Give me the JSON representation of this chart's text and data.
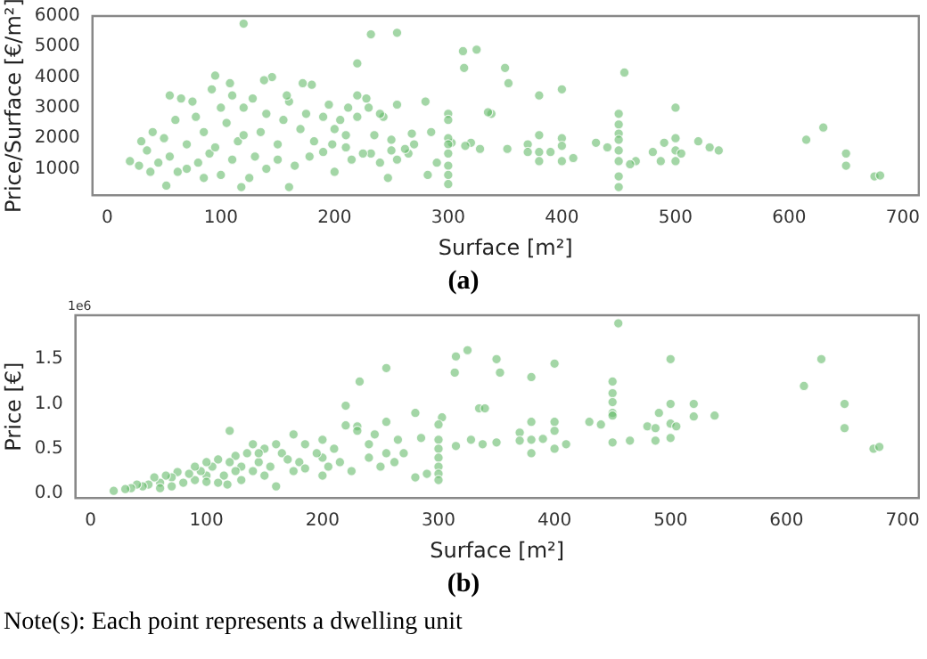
{
  "chart_data": [
    {
      "type": "scatter",
      "xlabel": "Surface [m²]",
      "ylabel": "Price/Surface [€/m²]",
      "xlim": [
        -13,
        714
      ],
      "ylim": [
        135,
        6000
      ],
      "xticks": [
        0,
        100,
        200,
        300,
        400,
        500,
        600,
        700
      ],
      "yticks": [
        1000,
        2000,
        3000,
        4000,
        5000,
        6000
      ],
      "grid": false,
      "legend": false,
      "marker": "circle",
      "annotations": [
        "(a)"
      ],
      "series": [
        {
          "color": "#66bb6a",
          "x": [
            120,
            232,
            255,
            220,
            313,
            325,
            314,
            350,
            353,
            380,
            400,
            455,
            500,
            630,
            615,
            650,
            650,
            675,
            680,
            520,
            530,
            538,
            500,
            500,
            505,
            500,
            490,
            480,
            487,
            465,
            460,
            450,
            450,
            450,
            450,
            450,
            450,
            450,
            450,
            440,
            430,
            410,
            400,
            400,
            400,
            390,
            380,
            380,
            380,
            370,
            370,
            352,
            338,
            335,
            328,
            320,
            315,
            303,
            300,
            300,
            300,
            300,
            300,
            300,
            300,
            300,
            290,
            285,
            282,
            280,
            270,
            268,
            265,
            262,
            255,
            255,
            250,
            250,
            247,
            243,
            240,
            235,
            232,
            230,
            228,
            220,
            220,
            215,
            212,
            210,
            205,
            200,
            200,
            198,
            195,
            190,
            182,
            180,
            178,
            172,
            170,
            165,
            160,
            158,
            155,
            160,
            150,
            145,
            140,
            138,
            135,
            130,
            128,
            120,
            118,
            115,
            110,
            108,
            105,
            100,
            95,
            92,
            90,
            85,
            80,
            78,
            75,
            70,
            65,
            62,
            60,
            55,
            55,
            52,
            50,
            45,
            40,
            38,
            35,
            30,
            28,
            20,
            140,
            125,
            100,
            85,
            70,
            110,
            95,
            120,
            150,
            175,
            190,
            210,
            225,
            240
          ],
          "values": [
            5750,
            5400,
            5450,
            4450,
            4850,
            4900,
            4300,
            4300,
            3800,
            3400,
            3600,
            4150,
            3000,
            2350,
            1950,
            1500,
            1100,
            750,
            780,
            1900,
            1700,
            1600,
            2000,
            1600,
            1500,
            1250,
            1850,
            1550,
            1250,
            1250,
            1150,
            2800,
            2450,
            2150,
            1950,
            1600,
            1250,
            750,
            400,
            1700,
            1850,
            1350,
            2000,
            1750,
            1250,
            1550,
            2100,
            1550,
            1250,
            1800,
            1550,
            1650,
            2800,
            2850,
            1650,
            1850,
            1750,
            1850,
            2800,
            2600,
            2000,
            1800,
            1500,
            1100,
            800,
            500,
            1200,
            2200,
            800,
            3200,
            1800,
            2150,
            1500,
            1650,
            3100,
            1300,
            1950,
            1600,
            700,
            2700,
            2800,
            2100,
            1500,
            3000,
            3300,
            3400,
            2700,
            1300,
            3000,
            1700,
            2600,
            2300,
            900,
            1800,
            3100,
            2700,
            1900,
            3750,
            1400,
            3800,
            2300,
            1100,
            3200,
            3400,
            2600,
            400,
            1800,
            4000,
            2800,
            3900,
            2200,
            1400,
            3300,
            3000,
            400,
            1900,
            3400,
            3800,
            2500,
            3000,
            4050,
            3600,
            1500,
            2200,
            1200,
            2700,
            3200,
            1800,
            3300,
            900,
            2600,
            3400,
            1400,
            450,
            2000,
            1200,
            2200,
            900,
            1600,
            1900,
            1100,
            1250,
            1000,
            700,
            800,
            700,
            1000,
            1300,
            1700,
            2100,
            1300,
            2800,
            1550,
            2100,
            1500,
            1200
          ]
        }
      ]
    },
    {
      "type": "scatter",
      "xlabel": "Surface [m²]",
      "ylabel": "Price [€]",
      "xlim": [
        -13,
        714
      ],
      "ylim": [
        -0.05,
        1.99
      ],
      "xticks": [
        0,
        100,
        200,
        300,
        400,
        500,
        600,
        700
      ],
      "yticks": [
        {
          "value": 0,
          "label": "0.0"
        },
        {
          "value": 0.5,
          "label": "0.5"
        },
        {
          "value": 1,
          "label": "1.0"
        },
        {
          "value": 1.5,
          "label": "1.5"
        }
      ],
      "grid": false,
      "legend": false,
      "marker": "circle",
      "annotations": [
        "1e6",
        "(b)",
        "Note(s): Each point represents a dwelling unit"
      ],
      "series": [
        {
          "color": "#66bb6a",
          "x": [
            455,
            325,
            315,
            350,
            400,
            500,
            630,
            255,
            314,
            353,
            380,
            232,
            450,
            615,
            450,
            450,
            500,
            520,
            650,
            220,
            335,
            340,
            450,
            490,
            450,
            520,
            538,
            303,
            280,
            430,
            400,
            380,
            500,
            440,
            480,
            505,
            300,
            255,
            230,
            220,
            650,
            487,
            400,
            370,
            120,
            175,
            245,
            265,
            285,
            328,
            350,
            370,
            380,
            390,
            410,
            450,
            465,
            487,
            500,
            675,
            680,
            400,
            380,
            338,
            315,
            300,
            300,
            300,
            300,
            300,
            300,
            290,
            280,
            270,
            262,
            250,
            240,
            230,
            225,
            215,
            210,
            200,
            200,
            200,
            195,
            185,
            180,
            175,
            165,
            160,
            160,
            155,
            150,
            145,
            140,
            140,
            135,
            130,
            125,
            120,
            118,
            115,
            110,
            105,
            100,
            100,
            95,
            90,
            90,
            85,
            80,
            75,
            70,
            65,
            60,
            55,
            50,
            45,
            40,
            35,
            30,
            20,
            110,
            130,
            70,
            60,
            150,
            170,
            185,
            205,
            240,
            255,
            125,
            100,
            145
          ],
          "values": [
            1.9,
            1.6,
            1.53,
            1.5,
            1.45,
            1.5,
            1.5,
            1.4,
            1.35,
            1.35,
            1.3,
            1.25,
            1.25,
            1.2,
            1.12,
            1.02,
            1.0,
            1.0,
            1.0,
            0.98,
            0.95,
            0.95,
            0.9,
            0.9,
            0.87,
            0.86,
            0.87,
            0.85,
            0.9,
            0.8,
            0.8,
            0.8,
            0.78,
            0.77,
            0.75,
            0.75,
            0.77,
            0.8,
            0.75,
            0.76,
            0.73,
            0.73,
            0.7,
            0.68,
            0.7,
            0.66,
            0.66,
            0.6,
            0.62,
            0.6,
            0.57,
            0.59,
            0.6,
            0.61,
            0.55,
            0.57,
            0.59,
            0.59,
            0.62,
            0.5,
            0.52,
            0.5,
            0.45,
            0.55,
            0.53,
            0.6,
            0.5,
            0.4,
            0.3,
            0.22,
            0.15,
            0.22,
            0.18,
            0.45,
            0.35,
            0.3,
            0.4,
            0.7,
            0.25,
            0.35,
            0.5,
            0.6,
            0.4,
            0.2,
            0.45,
            0.55,
            0.35,
            0.25,
            0.45,
            0.55,
            0.08,
            0.3,
            0.5,
            0.35,
            0.55,
            0.25,
            0.45,
            0.3,
            0.42,
            0.35,
            0.1,
            0.2,
            0.38,
            0.3,
            0.35,
            0.2,
            0.25,
            0.3,
            0.15,
            0.22,
            0.12,
            0.24,
            0.18,
            0.2,
            0.12,
            0.18,
            0.1,
            0.08,
            0.1,
            0.06,
            0.05,
            0.03,
            0.12,
            0.15,
            0.08,
            0.06,
            0.2,
            0.38,
            0.28,
            0.3,
            0.55,
            0.45,
            0.25,
            0.13,
            0.45
          ]
        }
      ]
    }
  ]
}
